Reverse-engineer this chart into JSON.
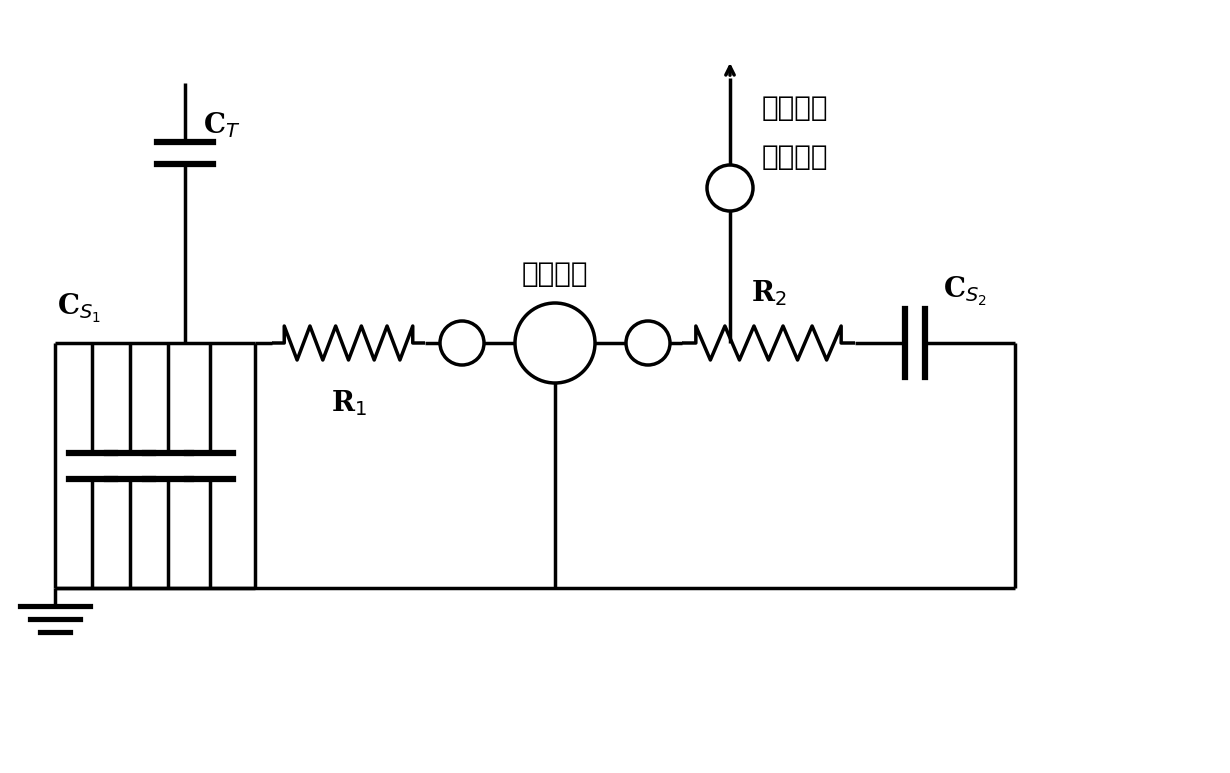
{
  "bg_color": "#ffffff",
  "line_color": "#000000",
  "line_width": 2.5,
  "label_CT": "C$_T$",
  "label_CS1": "C$_{S_1}$",
  "label_CS2": "C$_{S_2}$",
  "label_R1": "R$_1$",
  "label_R2": "R$_2$",
  "label_coax": "同轴电缆",
  "label_output1": "分压信号",
  "label_output2": "输出接口",
  "font_size_large": 20,
  "font_size_medium": 16
}
